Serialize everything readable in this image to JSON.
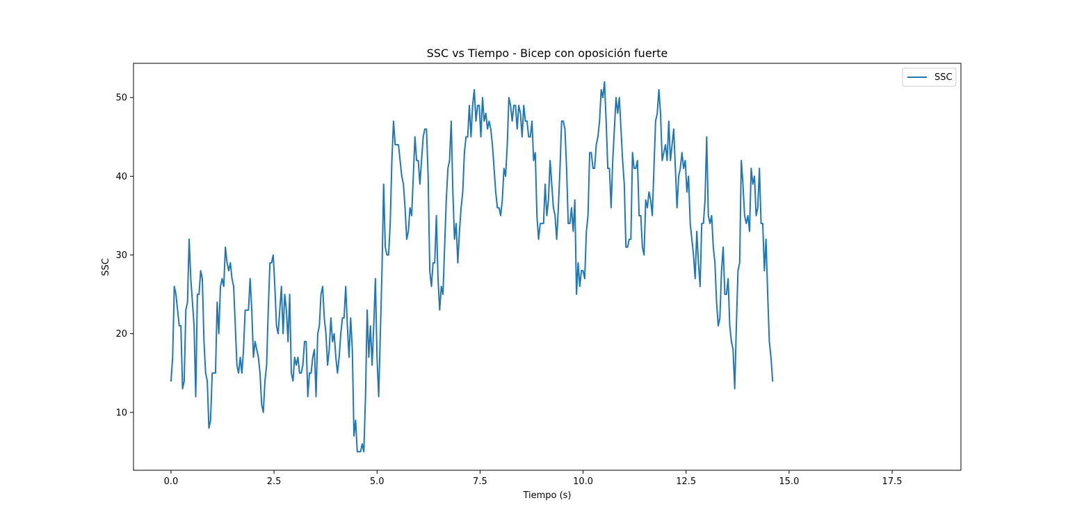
{
  "chart_data": {
    "type": "line",
    "title": "SSC vs Tiempo - Bicep con oposición fuerte",
    "xlabel": "Tiempo (s)",
    "ylabel": "SSC",
    "xlim": [
      -0.91,
      19.17
    ],
    "ylim": [
      2.65,
      54.35
    ],
    "xticks": [
      0.0,
      2.5,
      5.0,
      7.5,
      10.0,
      12.5,
      15.0,
      17.5
    ],
    "xtick_labels": [
      "0.0",
      "2.5",
      "5.0",
      "7.5",
      "10.0",
      "12.5",
      "15.0",
      "17.5"
    ],
    "yticks": [
      10,
      20,
      30,
      40,
      50
    ],
    "ytick_labels": [
      "10",
      "20",
      "30",
      "40",
      "50"
    ],
    "grid": false,
    "legend": {
      "placement": "upper right",
      "entries": [
        "SSC"
      ]
    },
    "series": [
      {
        "name": "SSC",
        "color": "#1f77b4",
        "x_start": 0.0,
        "x_step": 0.04,
        "values": [
          14,
          17,
          26,
          25,
          23,
          21,
          21,
          13,
          14,
          23,
          24,
          32,
          27,
          24,
          21,
          12,
          25,
          25,
          28,
          27,
          19,
          15,
          14,
          8,
          9,
          15,
          15,
          15,
          24,
          20,
          26,
          27,
          26,
          31,
          29,
          28,
          29,
          27,
          26,
          21,
          16,
          15,
          17,
          15,
          18,
          23,
          23,
          23,
          27,
          23,
          17,
          19,
          18,
          17,
          15,
          11,
          10,
          14,
          16,
          23,
          29,
          29,
          30,
          26,
          21,
          20,
          23,
          26,
          20,
          25,
          23,
          19,
          25,
          15,
          14,
          17,
          16,
          17,
          15,
          15,
          16,
          19,
          19,
          12,
          15,
          15,
          17,
          18,
          12,
          20,
          21,
          25,
          26,
          22,
          20,
          16,
          18,
          22,
          19,
          20,
          17,
          15,
          17,
          20,
          22,
          22,
          26,
          21,
          17,
          22,
          18,
          7,
          9,
          5,
          5,
          5,
          6,
          5,
          12,
          23,
          17,
          21,
          16,
          21,
          27,
          17,
          12,
          20,
          28,
          39,
          31,
          30,
          30,
          34,
          42,
          47,
          44,
          44,
          44,
          42,
          40,
          39,
          36,
          32,
          33,
          36,
          35,
          40,
          45,
          42,
          42,
          39,
          42,
          45,
          46,
          46,
          40,
          28,
          26,
          29,
          29,
          35,
          27,
          23,
          26,
          25,
          31,
          37,
          41,
          42,
          47,
          38,
          32,
          34,
          29,
          33,
          36,
          38,
          43,
          45,
          45,
          49,
          45,
          49,
          51,
          47,
          49,
          49,
          45,
          50,
          47,
          48,
          46,
          47,
          46,
          44,
          41,
          38,
          36,
          36,
          35,
          37,
          41,
          40,
          44,
          50,
          49,
          47,
          49,
          49,
          46,
          49,
          48,
          45,
          49,
          47,
          47,
          45,
          45,
          47,
          42,
          43,
          35,
          32,
          34,
          34,
          34,
          39,
          35,
          37,
          42,
          39,
          36,
          35,
          32,
          36,
          41,
          47,
          47,
          46,
          41,
          34,
          34,
          36,
          33,
          37,
          25,
          29,
          26,
          28,
          28,
          27,
          33,
          35,
          43,
          43,
          41,
          41,
          44,
          45,
          47,
          51,
          50,
          52,
          47,
          41,
          41,
          36,
          42,
          46,
          50,
          48,
          50,
          46,
          42,
          39,
          31,
          31,
          32,
          32,
          43,
          41,
          41,
          42,
          35,
          35,
          31,
          30,
          37,
          36,
          38,
          37,
          35,
          41,
          47,
          48,
          51,
          48,
          42,
          43,
          44,
          42,
          47,
          42,
          44,
          46,
          41,
          36,
          40,
          41,
          43,
          41,
          42,
          38,
          40,
          34,
          32,
          30,
          27,
          33,
          29,
          26,
          34,
          34,
          37,
          45,
          35,
          34,
          35,
          31,
          29,
          24,
          21,
          22,
          28,
          31,
          25,
          25,
          27,
          21,
          19,
          18,
          13,
          21,
          28,
          29,
          42,
          39,
          35,
          34,
          35,
          33,
          41,
          39,
          40,
          35,
          36,
          41,
          34,
          34,
          28,
          32,
          25,
          19,
          17,
          14
        ]
      }
    ]
  }
}
